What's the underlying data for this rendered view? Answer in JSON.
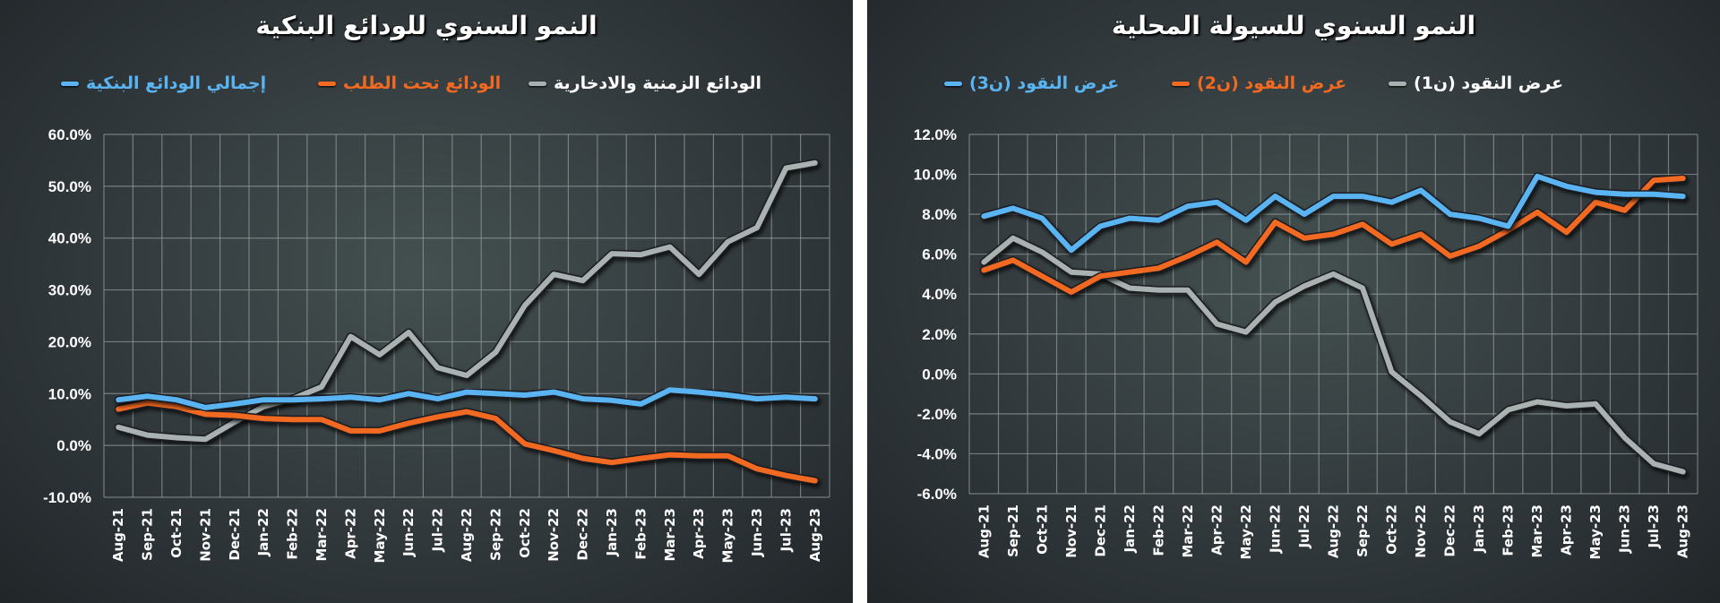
{
  "left": {
    "title": "النمو السنوي للودائع البنكية",
    "legend": [
      {
        "label": "الودائع الزمنية والادخارية",
        "color": "#a9b2b1"
      },
      {
        "label": "الودائع تحت الطلب",
        "color": "#f26a21"
      },
      {
        "label": "إجمالي الودائع البنكية",
        "color": "#5bb4f2"
      }
    ],
    "yticks": [
      "60.0%",
      "50.0%",
      "40.0%",
      "30.0%",
      "20.0%",
      "10.0%",
      "0.0%",
      "-10.0%"
    ]
  },
  "right": {
    "title": "النمو السنوي للسيولة المحلية",
    "legend": [
      {
        "label": "عرض النقود (ن1)",
        "color": "#a9b2b1"
      },
      {
        "label": "عرض النقود (ن2)",
        "color": "#f26a21"
      },
      {
        "label": "عرض النقود (ن3)",
        "color": "#5bb4f2"
      }
    ],
    "yticks": [
      "12.0%",
      "10.0%",
      "8.0%",
      "6.0%",
      "4.0%",
      "2.0%",
      "0.0%",
      "-2.0%",
      "-4.0%",
      "-6.0%"
    ]
  },
  "chart_data": [
    {
      "type": "line",
      "title": "النمو السنوي للودائع البنكية",
      "xlabel": "",
      "ylabel": "",
      "ylim": [
        -10,
        60
      ],
      "grid": true,
      "legend_position": "top",
      "categories": [
        "Aug-21",
        "Sep-21",
        "Oct-21",
        "Nov-21",
        "Dec-21",
        "Jan-22",
        "Feb-22",
        "Mar-22",
        "Apr-22",
        "May-22",
        "Jun-22",
        "Jul-22",
        "Aug-22",
        "Sep-22",
        "Oct-22",
        "Nov-22",
        "Dec-22",
        "Jan-23",
        "Feb-23",
        "Mar-23",
        "Apr-23",
        "May-23",
        "Jun-23",
        "Jul-23",
        "Aug-23"
      ],
      "series": [
        {
          "name": "إجمالي الودائع البنكية",
          "color": "#5bb4f2",
          "values": [
            8.8,
            9.5,
            8.8,
            7.3,
            8.0,
            8.8,
            8.8,
            9.0,
            9.3,
            8.8,
            10.0,
            9.0,
            10.3,
            10.0,
            9.7,
            10.3,
            9.0,
            8.7,
            8.0,
            10.7,
            10.3,
            9.7,
            9.0,
            9.3,
            9.0
          ]
        },
        {
          "name": "الودائع تحت الطلب",
          "color": "#f26a21",
          "values": [
            7.0,
            8.2,
            7.5,
            6.0,
            5.8,
            5.2,
            5.0,
            5.0,
            2.8,
            2.8,
            4.3,
            5.5,
            6.5,
            5.2,
            0.3,
            -1.0,
            -2.5,
            -3.3,
            -2.5,
            -1.8,
            -2.0,
            -2.0,
            -4.5,
            -5.8,
            -6.8
          ]
        },
        {
          "name": "الودائع الزمنية والادخارية",
          "color": "#a9b2b1",
          "values": [
            3.5,
            2.0,
            1.5,
            1.2,
            4.5,
            7.5,
            9.0,
            11.3,
            21.0,
            17.5,
            21.8,
            15.0,
            13.5,
            18.0,
            27.0,
            33.0,
            31.8,
            37.0,
            36.8,
            38.3,
            33.0,
            39.3,
            42.0,
            53.5,
            54.5
          ]
        }
      ]
    },
    {
      "type": "line",
      "title": "النمو السنوي للسيولة المحلية",
      "xlabel": "",
      "ylabel": "",
      "ylim": [
        -6,
        12
      ],
      "grid": true,
      "legend_position": "top",
      "categories": [
        "Aug-21",
        "Sep-21",
        "Oct-21",
        "Nov-21",
        "Dec-21",
        "Jan-22",
        "Feb-22",
        "Mar-22",
        "Apr-22",
        "May-22",
        "Jun-22",
        "Jul-22",
        "Aug-22",
        "Sep-22",
        "Oct-22",
        "Nov-22",
        "Dec-22",
        "Jan-23",
        "Feb-23",
        "Mar-23",
        "Apr-23",
        "May-23",
        "Jun-23",
        "Jul-23",
        "Aug-23"
      ],
      "series": [
        {
          "name": "عرض النقود (ن3)",
          "color": "#5bb4f2",
          "values": [
            7.9,
            8.3,
            7.8,
            6.2,
            7.4,
            7.8,
            7.7,
            8.4,
            8.6,
            7.7,
            8.9,
            8.0,
            8.9,
            8.9,
            8.6,
            9.2,
            8.0,
            7.8,
            7.4,
            9.9,
            9.4,
            9.1,
            9.0,
            9.0,
            8.9
          ]
        },
        {
          "name": "عرض النقود (ن2)",
          "color": "#f26a21",
          "values": [
            5.2,
            5.7,
            4.9,
            4.1,
            4.9,
            5.1,
            5.3,
            5.9,
            6.6,
            5.6,
            7.6,
            6.8,
            7.0,
            7.5,
            6.5,
            7.0,
            5.9,
            6.4,
            7.2,
            8.1,
            7.1,
            8.6,
            8.2,
            9.7,
            9.8
          ]
        },
        {
          "name": "عرض النقود (ن1)",
          "color": "#a9b2b1",
          "values": [
            5.6,
            6.8,
            6.1,
            5.1,
            5.0,
            4.3,
            4.2,
            4.2,
            2.5,
            2.1,
            3.6,
            4.4,
            5.0,
            4.3,
            0.1,
            -1.1,
            -2.4,
            -3.0,
            -1.8,
            -1.4,
            -1.6,
            -1.5,
            -3.2,
            -4.5,
            -4.9
          ]
        }
      ]
    }
  ]
}
